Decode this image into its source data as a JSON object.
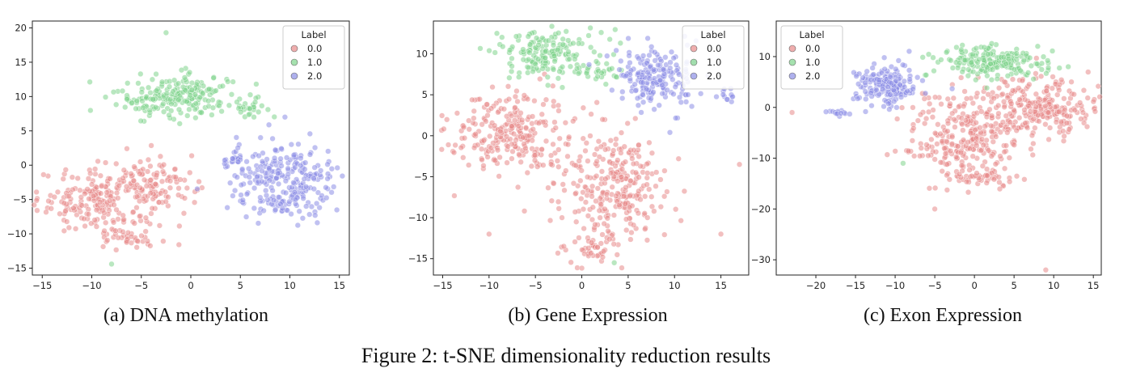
{
  "figure_caption": "Figure 2: t-SNE dimensionality reduction results",
  "colors": {
    "0.0": "#e88a8a",
    "1.0": "#7fd48c",
    "2.0": "#8c8ee6"
  },
  "chart_data": [
    {
      "type": "scatter",
      "caption": "(a) DNA methylation",
      "xlim": [
        -16,
        16
      ],
      "ylim": [
        -16,
        21
      ],
      "xticks": [
        -15,
        -10,
        -5,
        0,
        5,
        10,
        15
      ],
      "yticks": [
        -15,
        -10,
        -5,
        0,
        5,
        10,
        15,
        20
      ],
      "legend": {
        "title": "Label",
        "placement": "top-right",
        "labels": [
          "0.0",
          "1.0",
          "2.0"
        ]
      },
      "series": [
        {
          "name": "0.0",
          "clusters": [
            {
              "cx": -9,
              "cy": -5,
              "sx": 3.2,
              "sy": 2.4,
              "n": 230
            },
            {
              "cx": -3,
              "cy": -2.5,
              "sx": 1.8,
              "sy": 1.8,
              "n": 80
            },
            {
              "cx": -6,
              "cy": -10.5,
              "sx": 1.6,
              "sy": 0.6,
              "n": 30
            }
          ]
        },
        {
          "name": "1.0",
          "clusters": [
            {
              "cx": -1.5,
              "cy": 10,
              "sx": 3.0,
              "sy": 1.6,
              "n": 210
            },
            {
              "cx": 5.5,
              "cy": 8.5,
              "sx": 1.0,
              "sy": 0.7,
              "n": 25
            }
          ],
          "outliers": [
            [
              -2.5,
              19.3
            ],
            [
              -8,
              -14.4
            ]
          ]
        },
        {
          "name": "2.0",
          "clusters": [
            {
              "cx": 9.5,
              "cy": -2.5,
              "sx": 2.8,
              "sy": 3.0,
              "n": 260
            },
            {
              "cx": 4.5,
              "cy": 0.5,
              "sx": 0.6,
              "sy": 0.5,
              "n": 20
            }
          ]
        }
      ]
    },
    {
      "type": "scatter",
      "caption": "(b) Gene Expression",
      "xlim": [
        -16,
        18
      ],
      "ylim": [
        -17,
        14
      ],
      "xticks": [
        -15,
        -10,
        -5,
        0,
        5,
        10,
        15
      ],
      "yticks": [
        -15,
        -10,
        -5,
        0,
        5,
        10
      ],
      "legend": {
        "title": "Label",
        "placement": "top-right",
        "labels": [
          "0.0",
          "1.0",
          "2.0"
        ]
      },
      "series": [
        {
          "name": "0.0",
          "clusters": [
            {
              "cx": -8,
              "cy": 0.5,
              "sx": 3.2,
              "sy": 2.6,
              "n": 250
            },
            {
              "cx": 3,
              "cy": -6,
              "sx": 3.0,
              "sy": 3.2,
              "n": 280
            },
            {
              "cx": 1,
              "cy": -14,
              "sx": 1.5,
              "sy": 1.0,
              "n": 40
            }
          ],
          "outliers": [
            [
              17,
              -3.5
            ],
            [
              15,
              -12
            ],
            [
              -10,
              -12
            ]
          ]
        },
        {
          "name": "1.0",
          "clusters": [
            {
              "cx": -4,
              "cy": 10,
              "sx": 2.8,
              "sy": 1.4,
              "n": 160
            },
            {
              "cx": 1.5,
              "cy": 8,
              "sx": 1.2,
              "sy": 1.0,
              "n": 30
            }
          ],
          "outliers": [
            [
              3.5,
              -15.5
            ]
          ]
        },
        {
          "name": "2.0",
          "clusters": [
            {
              "cx": 8,
              "cy": 7,
              "sx": 2.2,
              "sy": 1.8,
              "n": 190
            },
            {
              "cx": 15.5,
              "cy": 4.8,
              "sx": 0.5,
              "sy": 0.6,
              "n": 12
            }
          ]
        }
      ]
    },
    {
      "type": "scatter",
      "caption": "(c) Exon Expression",
      "xlim": [
        -25,
        16
      ],
      "ylim": [
        -33,
        17
      ],
      "xticks": [
        -20,
        -15,
        -10,
        -5,
        0,
        5,
        10,
        15
      ],
      "yticks": [
        -30,
        -20,
        -10,
        0,
        10
      ],
      "legend": {
        "title": "Label",
        "placement": "top-left",
        "labels": [
          "0.0",
          "1.0",
          "2.0"
        ]
      },
      "series": [
        {
          "name": "0.0",
          "clusters": [
            {
              "cx": -1,
              "cy": -6,
              "sx": 3.8,
              "sy": 4.5,
              "n": 280
            },
            {
              "cx": 8,
              "cy": 0,
              "sx": 3.5,
              "sy": 3.0,
              "n": 240
            },
            {
              "cx": 1,
              "cy": -14,
              "sx": 2.0,
              "sy": 1.0,
              "n": 40
            }
          ],
          "outliers": [
            [
              9,
              -32
            ],
            [
              -23,
              -1
            ],
            [
              -5,
              -20
            ]
          ]
        },
        {
          "name": "1.0",
          "clusters": [
            {
              "cx": 2,
              "cy": 9,
              "sx": 3.5,
              "sy": 1.5,
              "n": 200
            }
          ],
          "outliers": [
            [
              -9,
              -11
            ]
          ]
        },
        {
          "name": "2.0",
          "clusters": [
            {
              "cx": -11,
              "cy": 4.5,
              "sx": 2.0,
              "sy": 2.0,
              "n": 180
            },
            {
              "cx": -16.5,
              "cy": -1,
              "sx": 1.0,
              "sy": 0.3,
              "n": 15
            }
          ]
        }
      ]
    }
  ]
}
